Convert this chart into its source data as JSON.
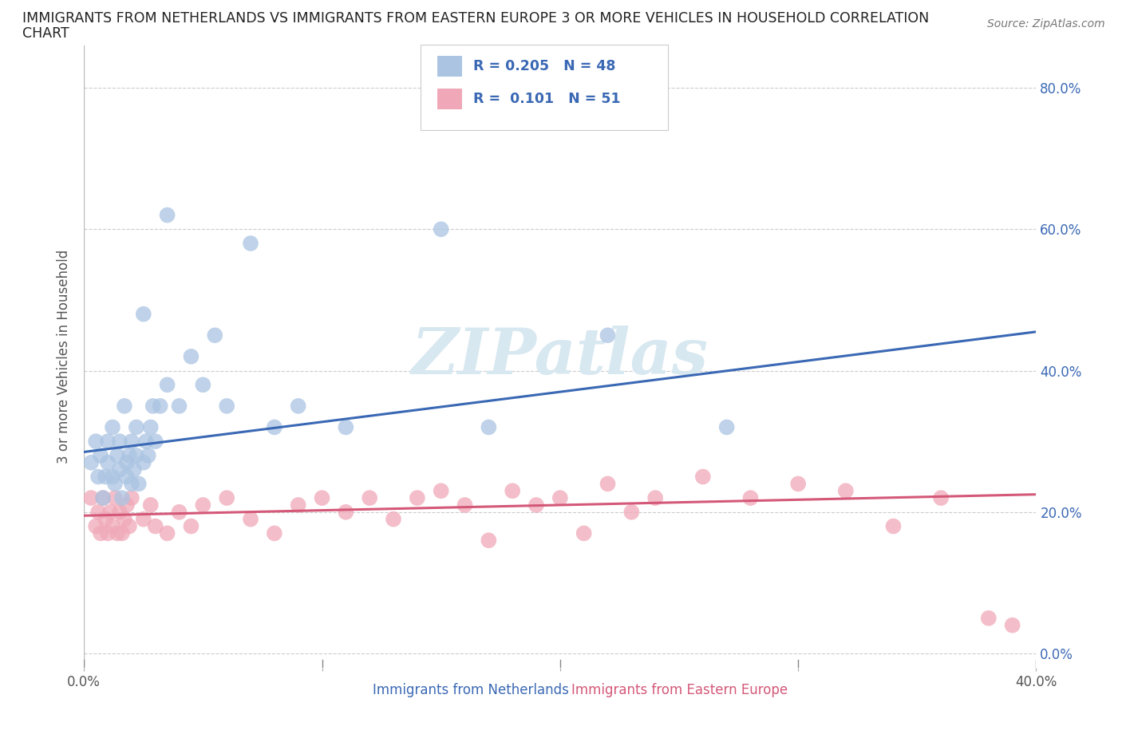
{
  "title_line1": "IMMIGRANTS FROM NETHERLANDS VS IMMIGRANTS FROM EASTERN EUROPE 3 OR MORE VEHICLES IN HOUSEHOLD CORRELATION",
  "title_line2": "CHART",
  "source": "Source: ZipAtlas.com",
  "ylabel": "3 or more Vehicles in Household",
  "xlabel_blue": "Immigrants from Netherlands",
  "xlabel_pink": "Immigrants from Eastern Europe",
  "xlim": [
    0.0,
    0.4
  ],
  "ylim": [
    -0.02,
    0.86
  ],
  "yticks": [
    0.0,
    0.2,
    0.4,
    0.6,
    0.8
  ],
  "ytick_labels": [
    "0.0%",
    "20.0%",
    "40.0%",
    "60.0%",
    "80.0%"
  ],
  "xticks": [
    0.0,
    0.1,
    0.2,
    0.3,
    0.4
  ],
  "xtick_labels": [
    "0.0%",
    "",
    "",
    "",
    "40.0%"
  ],
  "R_blue": 0.205,
  "N_blue": 48,
  "R_pink": 0.101,
  "N_pink": 51,
  "blue_color": "#aac4e2",
  "pink_color": "#f0a8b8",
  "line_blue": "#3a68b4",
  "line_pink": "#d45878",
  "text_blue": "#3a68b4",
  "watermark_color": "#d8e8f0",
  "blue_scatter_x": [
    0.003,
    0.005,
    0.006,
    0.007,
    0.008,
    0.009,
    0.01,
    0.01,
    0.012,
    0.012,
    0.013,
    0.014,
    0.015,
    0.015,
    0.016,
    0.017,
    0.018,
    0.018,
    0.019,
    0.02,
    0.02,
    0.021,
    0.022,
    0.022,
    0.023,
    0.025,
    0.026,
    0.027,
    0.028,
    0.029,
    0.03,
    0.032,
    0.035,
    0.04,
    0.045,
    0.05,
    0.055,
    0.06,
    0.07,
    0.08,
    0.09,
    0.11,
    0.15,
    0.17,
    0.22,
    0.27,
    0.035,
    0.025
  ],
  "blue_scatter_y": [
    0.27,
    0.3,
    0.25,
    0.28,
    0.22,
    0.25,
    0.3,
    0.27,
    0.25,
    0.32,
    0.24,
    0.28,
    0.26,
    0.3,
    0.22,
    0.35,
    0.27,
    0.25,
    0.28,
    0.24,
    0.3,
    0.26,
    0.28,
    0.32,
    0.24,
    0.27,
    0.3,
    0.28,
    0.32,
    0.35,
    0.3,
    0.35,
    0.38,
    0.35,
    0.42,
    0.38,
    0.45,
    0.35,
    0.58,
    0.32,
    0.35,
    0.32,
    0.6,
    0.32,
    0.45,
    0.32,
    0.62,
    0.48
  ],
  "pink_scatter_x": [
    0.003,
    0.005,
    0.006,
    0.007,
    0.008,
    0.009,
    0.01,
    0.011,
    0.012,
    0.013,
    0.014,
    0.015,
    0.016,
    0.017,
    0.018,
    0.019,
    0.02,
    0.025,
    0.028,
    0.03,
    0.035,
    0.04,
    0.045,
    0.05,
    0.06,
    0.07,
    0.08,
    0.09,
    0.1,
    0.11,
    0.12,
    0.13,
    0.14,
    0.16,
    0.18,
    0.2,
    0.22,
    0.24,
    0.26,
    0.28,
    0.3,
    0.32,
    0.34,
    0.36,
    0.15,
    0.17,
    0.19,
    0.21,
    0.23,
    0.38,
    0.39
  ],
  "pink_scatter_y": [
    0.22,
    0.18,
    0.2,
    0.17,
    0.22,
    0.19,
    0.17,
    0.2,
    0.18,
    0.22,
    0.17,
    0.2,
    0.17,
    0.19,
    0.21,
    0.18,
    0.22,
    0.19,
    0.21,
    0.18,
    0.17,
    0.2,
    0.18,
    0.21,
    0.22,
    0.19,
    0.17,
    0.21,
    0.22,
    0.2,
    0.22,
    0.19,
    0.22,
    0.21,
    0.23,
    0.22,
    0.24,
    0.22,
    0.25,
    0.22,
    0.24,
    0.23,
    0.18,
    0.22,
    0.23,
    0.16,
    0.21,
    0.17,
    0.2,
    0.05,
    0.04
  ],
  "blue_line_x0": 0.0,
  "blue_line_y0": 0.285,
  "blue_line_x1": 0.4,
  "blue_line_y1": 0.455,
  "pink_line_x0": 0.0,
  "pink_line_y0": 0.195,
  "pink_line_x1": 0.4,
  "pink_line_y1": 0.225
}
